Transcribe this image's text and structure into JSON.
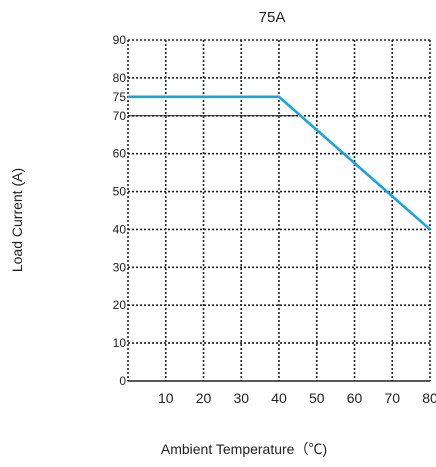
{
  "chart_data": {
    "type": "line",
    "title": "75A",
    "xlabel": "Ambient Temperature（℃)",
    "ylabel": "Load Current (A)",
    "xlim": [
      0,
      80
    ],
    "ylim": [
      0,
      90
    ],
    "xticks": [
      10,
      20,
      30,
      40,
      50,
      60,
      70,
      80
    ],
    "yticks": [
      0,
      10,
      20,
      30,
      40,
      50,
      60,
      70,
      75,
      80,
      90
    ],
    "grid": true,
    "series": [
      {
        "color": "#1aa3e0",
        "x": [
          0,
          40,
          80
        ],
        "y": [
          75,
          75,
          40
        ]
      }
    ],
    "reference_line": {
      "y": 70,
      "x": [
        0,
        45
      ]
    }
  }
}
